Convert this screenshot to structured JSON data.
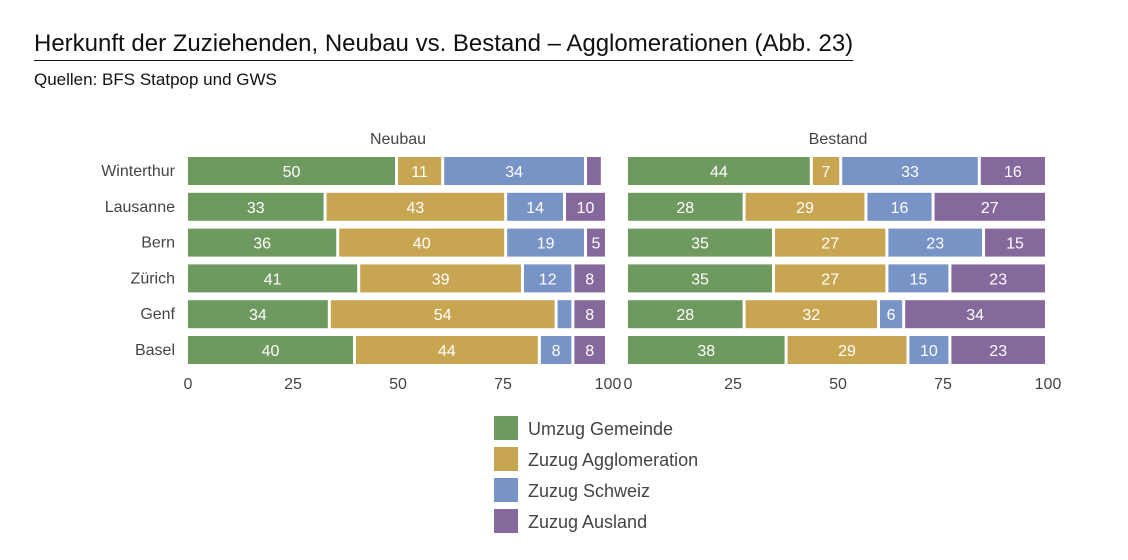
{
  "header": {
    "title": "Herkunft der Zuziehenden, Neubau vs. Bestand – Agglomerationen  (Abb. 23)",
    "subtitle": "Quellen: BFS Statpop und GWS"
  },
  "colors": {
    "Umzug Gemeinde": "#6e9a5f",
    "Zuzug Agglomeration": "#c8a551",
    "Zuzug Schweiz": "#7893c6",
    "Zuzug Ausland": "#85699c"
  },
  "chart_data": {
    "type": "bar",
    "orientation": "horizontal",
    "stacked": true,
    "categories": [
      "Winterthur",
      "Lausanne",
      "Bern",
      "Zürich",
      "Genf",
      "Basel"
    ],
    "xlim": [
      0,
      100
    ],
    "xticks": [
      0,
      25,
      50,
      75,
      100
    ],
    "legend_position": "bottom",
    "panels": [
      {
        "title": "Neubau",
        "series": [
          {
            "name": "Umzug Gemeinde",
            "values": [
              50,
              33,
              36,
              41,
              34,
              40
            ]
          },
          {
            "name": "Zuzug Agglomeration",
            "values": [
              11,
              43,
              40,
              39,
              54,
              44
            ]
          },
          {
            "name": "Zuzug Schweiz",
            "values": [
              34,
              14,
              19,
              12,
              4,
              8
            ]
          },
          {
            "name": "Zuzug Ausland",
            "values": [
              4,
              10,
              5,
              8,
              8,
              8
            ]
          }
        ]
      },
      {
        "title": "Bestand",
        "series": [
          {
            "name": "Umzug Gemeinde",
            "values": [
              44,
              28,
              35,
              35,
              28,
              38
            ]
          },
          {
            "name": "Zuzug Agglomeration",
            "values": [
              7,
              29,
              27,
              27,
              32,
              29
            ]
          },
          {
            "name": "Zuzug Schweiz",
            "values": [
              33,
              16,
              23,
              15,
              6,
              10
            ]
          },
          {
            "name": "Zuzug Ausland",
            "values": [
              16,
              27,
              15,
              23,
              34,
              23
            ]
          }
        ]
      }
    ],
    "legend": [
      "Umzug Gemeinde",
      "Zuzug Agglomeration",
      "Zuzug Schweiz",
      "Zuzug Ausland"
    ]
  }
}
